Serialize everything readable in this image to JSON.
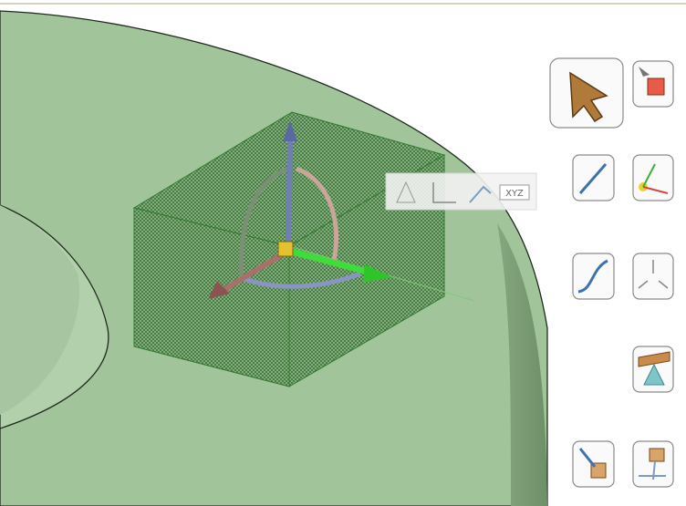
{
  "toolbar": {
    "xyz_button": "XYZ"
  }
}
